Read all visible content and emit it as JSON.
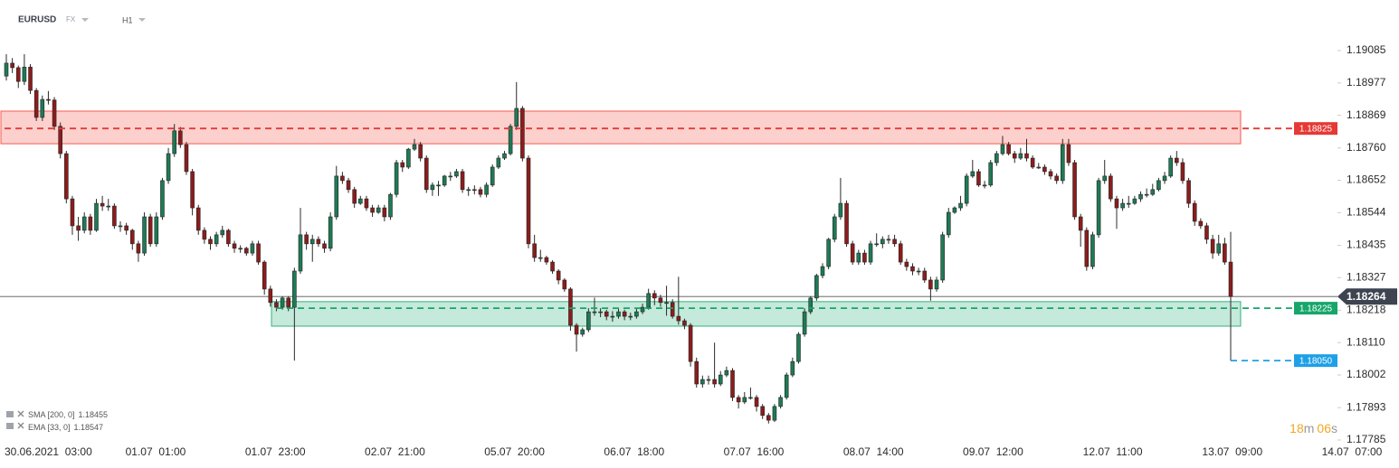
{
  "header": {
    "symbol": "EURUSD",
    "market": "FX",
    "interval": "H1"
  },
  "indicators": [
    {
      "name": "SMA [200, 0]",
      "value": 1.18455
    },
    {
      "name": "EMA [33, 0]",
      "value": 1.18547
    }
  ],
  "countdown": {
    "minutes": "18",
    "minutes_unit": "m",
    "seconds": "06",
    "seconds_unit": "s"
  },
  "chart_data": {
    "type": "candlestick",
    "up_color": "#1e7a55",
    "down_color": "#8c1c1c",
    "ylim": [
      1.17785,
      1.19085
    ],
    "yticks": [
      1.19085,
      1.18977,
      1.18869,
      {
        "value": 1.1876,
        "label": "1.18760"
      },
      1.18652,
      1.18544,
      1.18435,
      1.18327,
      1.18218,
      {
        "value": 1.1811,
        "label": "1.18110"
      },
      1.18002,
      1.17893,
      1.17785
    ],
    "xticks": [
      "30.06.2021  03:00",
      "01.07  01:00",
      "01.07  23:00",
      "02.07  21:00",
      "05.07  20:00",
      "06.07  18:00",
      "07.07  16:00",
      "08.07  14:00",
      "09.07  12:00",
      "12.07  11:00",
      "13.07  09:00",
      "14.07  07:00"
    ],
    "current_price": 1.18264,
    "levels": [
      {
        "value": 1.18825,
        "color": "#e53935"
      },
      {
        "value": 1.18225,
        "color": "#16a66a"
      },
      {
        "value": 1.1805,
        "label": "1.18050",
        "color": "#1ea0e6"
      }
    ],
    "zones": [
      {
        "top": 1.18883,
        "bottom": 1.18774,
        "color": "#f44336"
      },
      {
        "top": 1.18247,
        "bottom": 1.18165,
        "color": "#16a66a"
      }
    ],
    "candles": [
      [
        1.19,
        1.19073,
        1.18985,
        1.19043
      ],
      [
        1.19043,
        1.1906,
        1.1901,
        1.19028
      ],
      [
        1.19028,
        1.19035,
        1.1896,
        1.18982
      ],
      [
        1.18982,
        1.19073,
        1.1897,
        1.1903
      ],
      [
        1.1903,
        1.1904,
        1.1894,
        1.18952
      ],
      [
        1.18952,
        1.1896,
        1.1885,
        1.18862
      ],
      [
        1.18862,
        1.18935,
        1.1885,
        1.18922
      ],
      [
        1.18922,
        1.1895,
        1.18905,
        1.1892
      ],
      [
        1.1892,
        1.1893,
        1.1882,
        1.18832
      ],
      [
        1.18832,
        1.18845,
        1.18725,
        1.18741
      ],
      [
        1.18741,
        1.1875,
        1.18575,
        1.1859
      ],
      [
        1.1859,
        1.186,
        1.1847,
        1.185
      ],
      [
        1.185,
        1.1853,
        1.1845,
        1.18485
      ],
      [
        1.18485,
        1.18545,
        1.18475,
        1.1853
      ],
      [
        1.1853,
        1.1854,
        1.1847,
        1.18485
      ],
      [
        1.18485,
        1.1859,
        1.1848,
        1.18575
      ],
      [
        1.18575,
        1.186,
        1.1855,
        1.18566
      ],
      [
        1.18566,
        1.1859,
        1.1855,
        1.18566
      ],
      [
        1.18566,
        1.18575,
        1.1849,
        1.185
      ],
      [
        1.185,
        1.18515,
        1.1848,
        1.185
      ],
      [
        1.185,
        1.1851,
        1.1847,
        1.18485
      ],
      [
        1.18485,
        1.1849,
        1.1842,
        1.1844
      ],
      [
        1.1844,
        1.1845,
        1.1838,
        1.18409
      ],
      [
        1.18409,
        1.18545,
        1.184,
        1.1853
      ],
      [
        1.1853,
        1.1854,
        1.1843,
        1.1844
      ],
      [
        1.1844,
        1.18545,
        1.1843,
        1.1853
      ],
      [
        1.1853,
        1.1866,
        1.1852,
        1.18651
      ],
      [
        1.18651,
        1.1876,
        1.1864,
        1.18741
      ],
      [
        1.18741,
        1.1884,
        1.1873,
        1.18817
      ],
      [
        1.18817,
        1.1883,
        1.1876,
        1.18771
      ],
      [
        1.18771,
        1.1878,
        1.1867,
        1.18681
      ],
      [
        1.18681,
        1.1869,
        1.18535,
        1.1856
      ],
      [
        1.1856,
        1.1857,
        1.1847,
        1.18485
      ],
      [
        1.18485,
        1.18495,
        1.1844,
        1.18455
      ],
      [
        1.18455,
        1.18465,
        1.1842,
        1.1844
      ],
      [
        1.1844,
        1.1848,
        1.1843,
        1.1847
      ],
      [
        1.1847,
        1.185,
        1.1846,
        1.18485
      ],
      [
        1.18485,
        1.1849,
        1.1843,
        1.1844
      ],
      [
        1.1844,
        1.1845,
        1.1841,
        1.18425
      ],
      [
        1.18425,
        1.18435,
        1.1841,
        1.18425
      ],
      [
        1.18425,
        1.1843,
        1.184,
        1.18409
      ],
      [
        1.18409,
        1.1845,
        1.184,
        1.1844
      ],
      [
        1.1844,
        1.1845,
        1.1837,
        1.18379
      ],
      [
        1.18379,
        1.18385,
        1.1827,
        1.18289
      ],
      [
        1.18289,
        1.183,
        1.1823,
        1.18244
      ],
      [
        1.18244,
        1.18255,
        1.18215,
        1.18228
      ],
      [
        1.18228,
        1.18265,
        1.1822,
        1.18259
      ],
      [
        1.18259,
        1.18265,
        1.18215,
        1.18228
      ],
      [
        1.18228,
        1.1836,
        1.1805,
        1.18349
      ],
      [
        1.18349,
        1.1856,
        1.1834,
        1.1847
      ],
      [
        1.1847,
        1.1848,
        1.1842,
        1.1844
      ],
      [
        1.1844,
        1.1847,
        1.1838,
        1.18455
      ],
      [
        1.18455,
        1.18465,
        1.1843,
        1.1844
      ],
      [
        1.1844,
        1.1845,
        1.1841,
        1.18425
      ],
      [
        1.18425,
        1.18545,
        1.18415,
        1.1853
      ],
      [
        1.1853,
        1.187,
        1.1852,
        1.18666
      ],
      [
        1.18666,
        1.1868,
        1.1864,
        1.18651
      ],
      [
        1.18651,
        1.1866,
        1.1861,
        1.18621
      ],
      [
        1.18621,
        1.1863,
        1.1856,
        1.18575
      ],
      [
        1.18575,
        1.186,
        1.1857,
        1.1859
      ],
      [
        1.1859,
        1.186,
        1.1855,
        1.1856
      ],
      [
        1.1856,
        1.1857,
        1.1853,
        1.18545
      ],
      [
        1.18545,
        1.1857,
        1.1854,
        1.1856
      ],
      [
        1.1856,
        1.1857,
        1.18515,
        1.1853
      ],
      [
        1.1853,
        1.1861,
        1.1852,
        1.18605
      ],
      [
        1.18605,
        1.1872,
        1.18595,
        1.18711
      ],
      [
        1.18711,
        1.1872,
        1.1868,
        1.18696
      ],
      [
        1.18696,
        1.1876,
        1.1869,
        1.18756
      ],
      [
        1.18756,
        1.1879,
        1.1875,
        1.18771
      ],
      [
        1.18771,
        1.1878,
        1.18715,
        1.18726
      ],
      [
        1.18726,
        1.18735,
        1.1861,
        1.18621
      ],
      [
        1.18621,
        1.18645,
        1.186,
        1.18636
      ],
      [
        1.18636,
        1.1865,
        1.186,
        1.18636
      ],
      [
        1.18636,
        1.1867,
        1.1863,
        1.18666
      ],
      [
        1.18666,
        1.1868,
        1.1865,
        1.18666
      ],
      [
        1.18666,
        1.1869,
        1.1866,
        1.18681
      ],
      [
        1.18681,
        1.1869,
        1.1861,
        1.18621
      ],
      [
        1.18621,
        1.1863,
        1.186,
        1.18621
      ],
      [
        1.18621,
        1.18635,
        1.18605,
        1.18621
      ],
      [
        1.18621,
        1.1863,
        1.18595,
        1.18605
      ],
      [
        1.18605,
        1.18645,
        1.18595,
        1.18636
      ],
      [
        1.18636,
        1.18705,
        1.1863,
        1.18696
      ],
      [
        1.18696,
        1.18735,
        1.1869,
        1.18726
      ],
      [
        1.18726,
        1.1875,
        1.1872,
        1.18741
      ],
      [
        1.18741,
        1.1884,
        1.18735,
        1.18832
      ],
      [
        1.18832,
        1.1898,
        1.1882,
        1.18892
      ],
      [
        1.18892,
        1.189,
        1.18715,
        1.18726
      ],
      [
        1.18726,
        1.18735,
        1.18425,
        1.1844
      ],
      [
        1.1844,
        1.1847,
        1.1838,
        1.18394
      ],
      [
        1.18394,
        1.1842,
        1.1838,
        1.18394
      ],
      [
        1.18394,
        1.184,
        1.1837,
        1.18379
      ],
      [
        1.18379,
        1.18385,
        1.1834,
        1.18349
      ],
      [
        1.18349,
        1.18355,
        1.18305,
        1.18319
      ],
      [
        1.18319,
        1.18325,
        1.1828,
        1.18289
      ],
      [
        1.18289,
        1.18295,
        1.1815,
        1.18168
      ],
      [
        1.18168,
        1.18175,
        1.1808,
        1.18138
      ],
      [
        1.18138,
        1.1816,
        1.1813,
        1.18153
      ],
      [
        1.18153,
        1.18225,
        1.18145,
        1.18213
      ],
      [
        1.18213,
        1.1826,
        1.182,
        1.18213
      ],
      [
        1.18213,
        1.18225,
        1.18195,
        1.18213
      ],
      [
        1.18213,
        1.1822,
        1.18185,
        1.18198
      ],
      [
        1.18198,
        1.18215,
        1.1818,
        1.18198
      ],
      [
        1.18198,
        1.18225,
        1.1819,
        1.18213
      ],
      [
        1.18213,
        1.1822,
        1.18185,
        1.18198
      ],
      [
        1.18198,
        1.1821,
        1.18185,
        1.18198
      ],
      [
        1.18198,
        1.18225,
        1.1819,
        1.18213
      ],
      [
        1.18213,
        1.1824,
        1.18205,
        1.18228
      ],
      [
        1.18228,
        1.1829,
        1.1822,
        1.18274
      ],
      [
        1.18274,
        1.18285,
        1.18235,
        1.18259
      ],
      [
        1.18259,
        1.1827,
        1.1823,
        1.18244
      ],
      [
        1.18244,
        1.183,
        1.182,
        1.18244
      ],
      [
        1.18244,
        1.18255,
        1.1819,
        1.18198
      ],
      [
        1.18198,
        1.1833,
        1.1817,
        1.18183
      ],
      [
        1.18183,
        1.1819,
        1.18155,
        1.18168
      ],
      [
        1.18168,
        1.18175,
        1.1803,
        1.18047
      ],
      [
        1.18047,
        1.1806,
        1.1796,
        1.17972
      ],
      [
        1.17972,
        1.18,
        1.1796,
        1.17987
      ],
      [
        1.17987,
        1.18,
        1.1797,
        1.17987
      ],
      [
        1.17987,
        1.1811,
        1.1796,
        1.17972
      ],
      [
        1.17972,
        1.18015,
        1.17965,
        1.18002
      ],
      [
        1.18002,
        1.1803,
        1.17995,
        1.18017
      ],
      [
        1.18017,
        1.18025,
        1.17915,
        1.17927
      ],
      [
        1.17927,
        1.17935,
        1.1789,
        1.17912
      ],
      [
        1.17912,
        1.17945,
        1.17905,
        1.17927
      ],
      [
        1.17927,
        1.1796,
        1.1792,
        1.17927
      ],
      [
        1.17927,
        1.17935,
        1.1788,
        1.17897
      ],
      [
        1.17897,
        1.17905,
        1.17855,
        1.17867
      ],
      [
        1.17867,
        1.17875,
        1.1784,
        1.17851
      ],
      [
        1.17851,
        1.17905,
        1.17845,
        1.17897
      ],
      [
        1.17897,
        1.17935,
        1.1789,
        1.17927
      ],
      [
        1.17927,
        1.1801,
        1.1792,
        1.18002
      ],
      [
        1.18002,
        1.1806,
        1.17995,
        1.18047
      ],
      [
        1.18047,
        1.18145,
        1.1804,
        1.18138
      ],
      [
        1.18138,
        1.18225,
        1.1813,
        1.18213
      ],
      [
        1.18213,
        1.18265,
        1.18205,
        1.18259
      ],
      [
        1.18259,
        1.1834,
        1.1825,
        1.18334
      ],
      [
        1.18334,
        1.18375,
        1.18325,
        1.18364
      ],
      [
        1.18364,
        1.1846,
        1.18355,
        1.18455
      ],
      [
        1.18455,
        1.1854,
        1.18445,
        1.1853
      ],
      [
        1.1853,
        1.1866,
        1.1852,
        1.18575
      ],
      [
        1.18575,
        1.18585,
        1.1843,
        1.1844
      ],
      [
        1.1844,
        1.1845,
        1.1837,
        1.18379
      ],
      [
        1.18379,
        1.1842,
        1.1837,
        1.18409
      ],
      [
        1.18409,
        1.1842,
        1.1837,
        1.18379
      ],
      [
        1.18379,
        1.1845,
        1.1837,
        1.1844
      ],
      [
        1.1844,
        1.18475,
        1.1843,
        1.1844
      ],
      [
        1.1844,
        1.18465,
        1.18425,
        1.18455
      ],
      [
        1.18455,
        1.1847,
        1.1844,
        1.18455
      ],
      [
        1.18455,
        1.1847,
        1.1843,
        1.1844
      ],
      [
        1.1844,
        1.1845,
        1.1837,
        1.18379
      ],
      [
        1.18379,
        1.1839,
        1.1835,
        1.18364
      ],
      [
        1.18364,
        1.18375,
        1.18335,
        1.18349
      ],
      [
        1.18349,
        1.1836,
        1.18335,
        1.18349
      ],
      [
        1.18349,
        1.1836,
        1.1831,
        1.18319
      ],
      [
        1.18319,
        1.1833,
        1.1825,
        1.18289
      ],
      [
        1.18289,
        1.1833,
        1.1828,
        1.18319
      ],
      [
        1.18319,
        1.1848,
        1.1831,
        1.1847
      ],
      [
        1.1847,
        1.1856,
        1.1846,
        1.18545
      ],
      [
        1.18545,
        1.18565,
        1.1854,
        1.1856
      ],
      [
        1.1856,
        1.186,
        1.1855,
        1.18575
      ],
      [
        1.18575,
        1.18675,
        1.18565,
        1.18666
      ],
      [
        1.18666,
        1.1872,
        1.1866,
        1.18681
      ],
      [
        1.18681,
        1.1869,
        1.1863,
        1.18636
      ],
      [
        1.18636,
        1.1865,
        1.18625,
        1.18636
      ],
      [
        1.18636,
        1.1872,
        1.1863,
        1.18711
      ],
      [
        1.18711,
        1.1875,
        1.187,
        1.18741
      ],
      [
        1.18741,
        1.188,
        1.18735,
        1.18771
      ],
      [
        1.18771,
        1.1878,
        1.18735,
        1.18741
      ],
      [
        1.18741,
        1.1875,
        1.1871,
        1.18726
      ],
      [
        1.18726,
        1.1876,
        1.1872,
        1.18741
      ],
      [
        1.18741,
        1.1879,
        1.18715,
        1.18726
      ],
      [
        1.18726,
        1.18735,
        1.1869,
        1.18696
      ],
      [
        1.18696,
        1.1871,
        1.1869,
        1.18696
      ],
      [
        1.18696,
        1.18705,
        1.1867,
        1.18681
      ],
      [
        1.18681,
        1.1869,
        1.18655,
        1.18666
      ],
      [
        1.18666,
        1.18675,
        1.1864,
        1.18651
      ],
      [
        1.18651,
        1.1879,
        1.1864,
        1.18771
      ],
      [
        1.18771,
        1.1879,
        1.187,
        1.18711
      ],
      [
        1.18711,
        1.1872,
        1.1852,
        1.1853
      ],
      [
        1.1853,
        1.1854,
        1.1843,
        1.18485
      ],
      [
        1.18485,
        1.18495,
        1.1835,
        1.18364
      ],
      [
        1.18364,
        1.1848,
        1.18355,
        1.1847
      ],
      [
        1.1847,
        1.1866,
        1.1846,
        1.18651
      ],
      [
        1.18651,
        1.1872,
        1.1864,
        1.18666
      ],
      [
        1.18666,
        1.18675,
        1.1858,
        1.1859
      ],
      [
        1.1859,
        1.186,
        1.1849,
        1.1856
      ],
      [
        1.1856,
        1.1859,
        1.1855,
        1.18575
      ],
      [
        1.18575,
        1.186,
        1.1856,
        1.18575
      ],
      [
        1.18575,
        1.186,
        1.1857,
        1.1859
      ],
      [
        1.1859,
        1.18615,
        1.1858,
        1.18605
      ],
      [
        1.18605,
        1.18625,
        1.18595,
        1.18605
      ],
      [
        1.18605,
        1.1864,
        1.186,
        1.18621
      ],
      [
        1.18621,
        1.1866,
        1.18615,
        1.18651
      ],
      [
        1.18651,
        1.1868,
        1.1864,
        1.18666
      ],
      [
        1.18666,
        1.18735,
        1.1866,
        1.18726
      ],
      [
        1.18726,
        1.1875,
        1.187,
        1.18711
      ],
      [
        1.18711,
        1.18725,
        1.1864,
        1.18651
      ],
      [
        1.18651,
        1.1866,
        1.1856,
        1.18575
      ],
      [
        1.18575,
        1.18585,
        1.185,
        1.18515
      ],
      [
        1.18515,
        1.18525,
        1.1849,
        1.185
      ],
      [
        1.185,
        1.1851,
        1.1844,
        1.18455
      ],
      [
        1.18455,
        1.1847,
        1.1839,
        1.18409
      ],
      [
        1.18409,
        1.1847,
        1.184,
        1.1844
      ],
      [
        1.1844,
        1.1846,
        1.1837,
        1.18379
      ],
      [
        1.18379,
        1.1848,
        1.1805,
        1.18264
      ]
    ]
  }
}
